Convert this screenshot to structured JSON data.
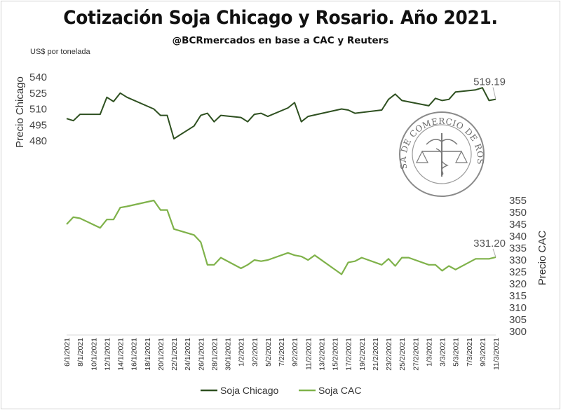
{
  "title": "Cotización Soja Chicago y Rosario. Año 2021.",
  "subtitle": "@BCRmercados  en base a CAC y Reuters",
  "unit": "US$ por tonelada",
  "seal_text": "BOLSA DE COMERCIO DE ROSARIO",
  "chart_data": {
    "type": "line",
    "title": "Cotización Soja Chicago y Rosario. Año 2021.",
    "x_labels": [
      "6/1/2021",
      "8/1/2021",
      "10/1/2021",
      "12/1/2021",
      "14/1/2021",
      "16/1/2021",
      "18/1/2021",
      "20/1/2021",
      "22/1/2021",
      "24/1/2021",
      "26/1/2021",
      "28/1/2021",
      "30/1/2021",
      "1/2/2021",
      "3/2/2021",
      "5/2/2021",
      "7/2/2021",
      "9/2/2021",
      "11/2/2021",
      "13/2/2021",
      "15/2/2021",
      "17/2/2021",
      "19/2/2021",
      "21/2/2021",
      "23/2/2021",
      "25/2/2021",
      "27/2/2021",
      "1/3/2021",
      "3/3/2021",
      "5/3/2021",
      "7/3/2021",
      "9/3/2021",
      "11/3/2021"
    ],
    "x_start": "2021-01-06",
    "x_end": "2021-03-11",
    "left_axis": {
      "label": "Precio Chicago",
      "ticks": [
        480,
        495,
        510,
        525,
        540
      ],
      "ylim": [
        480,
        540
      ]
    },
    "right_axis": {
      "label": "Precio CAC",
      "ticks": [
        300,
        305,
        310,
        315,
        320,
        325,
        330,
        335,
        340,
        345,
        350,
        355
      ],
      "ylim": [
        300,
        355
      ]
    },
    "series": [
      {
        "name": "Soja Chicago",
        "axis": "left",
        "color": "#2e5020",
        "points": [
          [
            "2021-01-06",
            501
          ],
          [
            "2021-01-07",
            499
          ],
          [
            "2021-01-08",
            505
          ],
          [
            "2021-01-11",
            505
          ],
          [
            "2021-01-12",
            521
          ],
          [
            "2021-01-13",
            517
          ],
          [
            "2021-01-14",
            525
          ],
          [
            "2021-01-15",
            521
          ],
          [
            "2021-01-19",
            510
          ],
          [
            "2021-01-20",
            504
          ],
          [
            "2021-01-21",
            504
          ],
          [
            "2021-01-22",
            482
          ],
          [
            "2021-01-25",
            494
          ],
          [
            "2021-01-26",
            504
          ],
          [
            "2021-01-27",
            506
          ],
          [
            "2021-01-28",
            498
          ],
          [
            "2021-01-29",
            504
          ],
          [
            "2021-02-01",
            502
          ],
          [
            "2021-02-02",
            498
          ],
          [
            "2021-02-03",
            505
          ],
          [
            "2021-02-04",
            506
          ],
          [
            "2021-02-05",
            503
          ],
          [
            "2021-02-08",
            511
          ],
          [
            "2021-02-09",
            516
          ],
          [
            "2021-02-10",
            498
          ],
          [
            "2021-02-11",
            503
          ],
          [
            "2021-02-16",
            510
          ],
          [
            "2021-02-17",
            509
          ],
          [
            "2021-02-18",
            506
          ],
          [
            "2021-02-22",
            509
          ],
          [
            "2021-02-23",
            519
          ],
          [
            "2021-02-24",
            524
          ],
          [
            "2021-02-25",
            518
          ],
          [
            "2021-03-01",
            513
          ],
          [
            "2021-03-02",
            520
          ],
          [
            "2021-03-03",
            518
          ],
          [
            "2021-03-04",
            519
          ],
          [
            "2021-03-05",
            526
          ],
          [
            "2021-03-08",
            528
          ],
          [
            "2021-03-09",
            530
          ],
          [
            "2021-03-10",
            518
          ],
          [
            "2021-03-11",
            519.19
          ]
        ]
      },
      {
        "name": "Soja CAC",
        "axis": "right",
        "color": "#7fb24a",
        "points": [
          [
            "2021-01-06",
            345
          ],
          [
            "2021-01-07",
            348
          ],
          [
            "2021-01-08",
            347.5
          ],
          [
            "2021-01-11",
            343.5
          ],
          [
            "2021-01-12",
            347
          ],
          [
            "2021-01-13",
            347
          ],
          [
            "2021-01-14",
            352
          ],
          [
            "2021-01-15",
            352.5
          ],
          [
            "2021-01-19",
            355
          ],
          [
            "2021-01-20",
            351
          ],
          [
            "2021-01-21",
            351
          ],
          [
            "2021-01-22",
            343
          ],
          [
            "2021-01-25",
            340.5
          ],
          [
            "2021-01-26",
            337.5
          ],
          [
            "2021-01-27",
            328
          ],
          [
            "2021-01-28",
            328
          ],
          [
            "2021-01-29",
            331
          ],
          [
            "2021-02-01",
            326.5
          ],
          [
            "2021-02-02",
            328
          ],
          [
            "2021-02-03",
            330
          ],
          [
            "2021-02-04",
            329.5
          ],
          [
            "2021-02-05",
            330
          ],
          [
            "2021-02-08",
            333
          ],
          [
            "2021-02-09",
            332
          ],
          [
            "2021-02-10",
            331.5
          ],
          [
            "2021-02-11",
            330
          ],
          [
            "2021-02-12",
            332
          ],
          [
            "2021-02-16",
            324
          ],
          [
            "2021-02-17",
            329
          ],
          [
            "2021-02-18",
            329.5
          ],
          [
            "2021-02-19",
            331
          ],
          [
            "2021-02-22",
            328
          ],
          [
            "2021-02-23",
            330.5
          ],
          [
            "2021-02-24",
            327.5
          ],
          [
            "2021-02-25",
            331
          ],
          [
            "2021-02-26",
            331
          ],
          [
            "2021-03-01",
            328
          ],
          [
            "2021-03-02",
            328
          ],
          [
            "2021-03-03",
            325.5
          ],
          [
            "2021-03-04",
            327.5
          ],
          [
            "2021-03-05",
            326
          ],
          [
            "2021-03-08",
            330.5
          ],
          [
            "2021-03-09",
            330.5
          ],
          [
            "2021-03-10",
            330.5
          ],
          [
            "2021-03-11",
            331.2
          ]
        ]
      }
    ],
    "annotations": [
      {
        "series": "Soja Chicago",
        "text": "519.19"
      },
      {
        "series": "Soja CAC",
        "text": "331.20"
      }
    ],
    "legend": {
      "position": "bottom",
      "entries": [
        "Soja Chicago",
        "Soja CAC"
      ]
    },
    "grid": false
  }
}
